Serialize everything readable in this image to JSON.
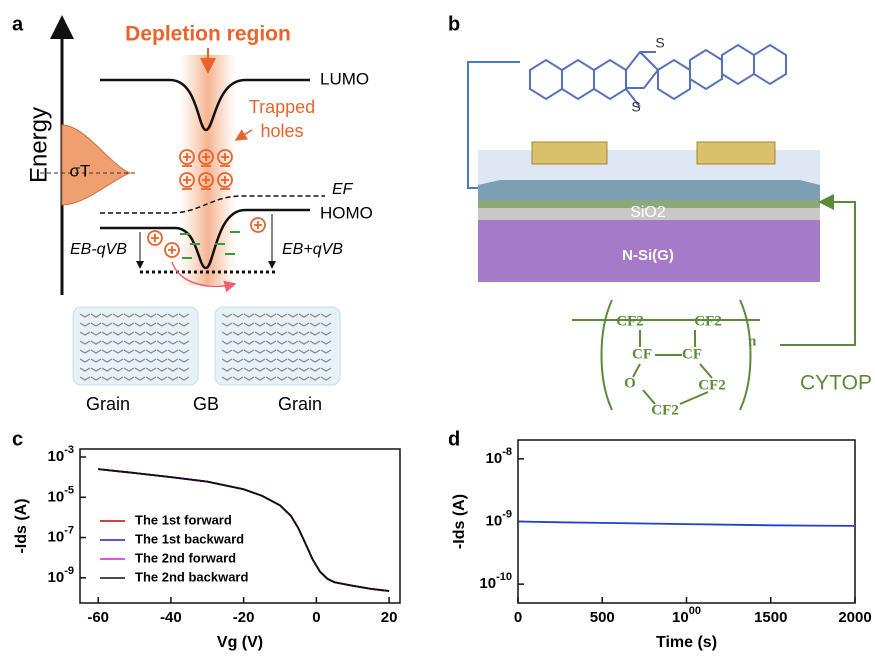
{
  "panel_a": {
    "label": "a",
    "axis": "Energy",
    "title": "Depletion region",
    "lumo": "LUMO",
    "trapped": [
      "Trapped",
      "holes"
    ],
    "sigma": "σT",
    "fermi": "EF",
    "homo": "HOMO",
    "left_barrier": "EB-qVB",
    "right_barrier": "EB+qVB",
    "regions": [
      "Grain",
      "GB",
      "Grain"
    ]
  },
  "panel_b": {
    "label": "b",
    "sulfur": [
      "S",
      "S"
    ],
    "oxide": "SiO2",
    "substrate": "N-Si(G)",
    "cytop": {
      "cf2": [
        "CF2",
        "CF2",
        "CF2",
        "CF2"
      ],
      "cf": [
        "CF",
        "CF"
      ],
      "oxygen": "O",
      "repeat": "n",
      "name": "CYTOP"
    }
  },
  "chart_data": [
    {
      "type": "line",
      "panel": "c",
      "xlabel": "Vg (V)",
      "ylabel": "-Ids (A)",
      "log_y": true,
      "x": [
        -60,
        -50,
        -40,
        -30,
        -20,
        -15,
        -10,
        -7,
        -5,
        -3,
        -1,
        0,
        1,
        3,
        5,
        10,
        15,
        20
      ],
      "series": [
        {
          "name": "The 1st forward",
          "color": "#c00000",
          "values": [
            0.00025,
            0.00016,
            0.0001,
            6e-05,
            2.5e-05,
            1.2e-05,
            4e-06,
            1.2e-06,
            3e-07,
            5e-08,
            8e-09,
            4e-09,
            2e-09,
            9e-10,
            6e-10,
            4e-10,
            2.8e-10,
            2.2e-10
          ]
        },
        {
          "name": "The 1st backward",
          "color": "#1f1fe0",
          "values": [
            0.00025,
            0.00016,
            0.0001,
            6e-05,
            2.5e-05,
            1.2e-05,
            4e-06,
            1.2e-06,
            3e-07,
            5e-08,
            8e-09,
            4e-09,
            2e-09,
            9e-10,
            6e-10,
            4e-10,
            2.8e-10,
            2.2e-10
          ]
        },
        {
          "name": "The 2nd forward",
          "color": "#d020d0",
          "values": [
            0.00025,
            0.00016,
            0.0001,
            6e-05,
            2.5e-05,
            1.2e-05,
            4e-06,
            1.2e-06,
            3e-07,
            5e-08,
            8e-09,
            4e-09,
            2e-09,
            9e-10,
            6e-10,
            4e-10,
            2.8e-10,
            2.2e-10
          ]
        },
        {
          "name": "The 2nd backward",
          "color": "#111111",
          "values": [
            0.00025,
            0.00016,
            0.0001,
            6e-05,
            2.5e-05,
            1.2e-05,
            4e-06,
            1.2e-06,
            3e-07,
            5e-08,
            8e-09,
            4e-09,
            2e-09,
            9e-10,
            6e-10,
            4e-10,
            2.8e-10,
            2.2e-10
          ]
        }
      ],
      "xlim": [
        -65,
        23
      ],
      "xticks": [
        -60,
        -40,
        -20,
        0,
        20
      ],
      "ylim": [
        5.6e-11,
        0.0025
      ],
      "yticks": [
        {
          "value": 0.001,
          "label": "10-3"
        },
        {
          "value": 1e-05,
          "label": "10-5"
        },
        {
          "value": 1e-07,
          "label": "10-7"
        },
        {
          "value": 1e-09,
          "label": "10-9"
        }
      ]
    },
    {
      "type": "line",
      "panel": "d",
      "xlabel": "Time (s)",
      "ylabel": "-Ids (A)",
      "log_y": true,
      "x": [
        0,
        250,
        500,
        750,
        1000,
        1250,
        1500,
        1750,
        2000
      ],
      "series": [
        {
          "color": "#1f3fd0",
          "values": [
            1e-09,
            9.7e-10,
            9.5e-10,
            9.3e-10,
            9.1e-10,
            8.9e-10,
            8.7e-10,
            8.6e-10,
            8.5e-10
          ]
        }
      ],
      "xlim": [
        0,
        2000
      ],
      "xticks": [
        0,
        500,
        1000,
        1500,
        2000
      ],
      "ylim": [
        5e-11,
        2e-08
      ],
      "yticks": [
        {
          "value": 1e-08,
          "label": "10-8"
        },
        {
          "value": 1e-09,
          "label": "10-9"
        },
        {
          "value": 1e-10,
          "label": "10-10"
        }
      ]
    }
  ]
}
